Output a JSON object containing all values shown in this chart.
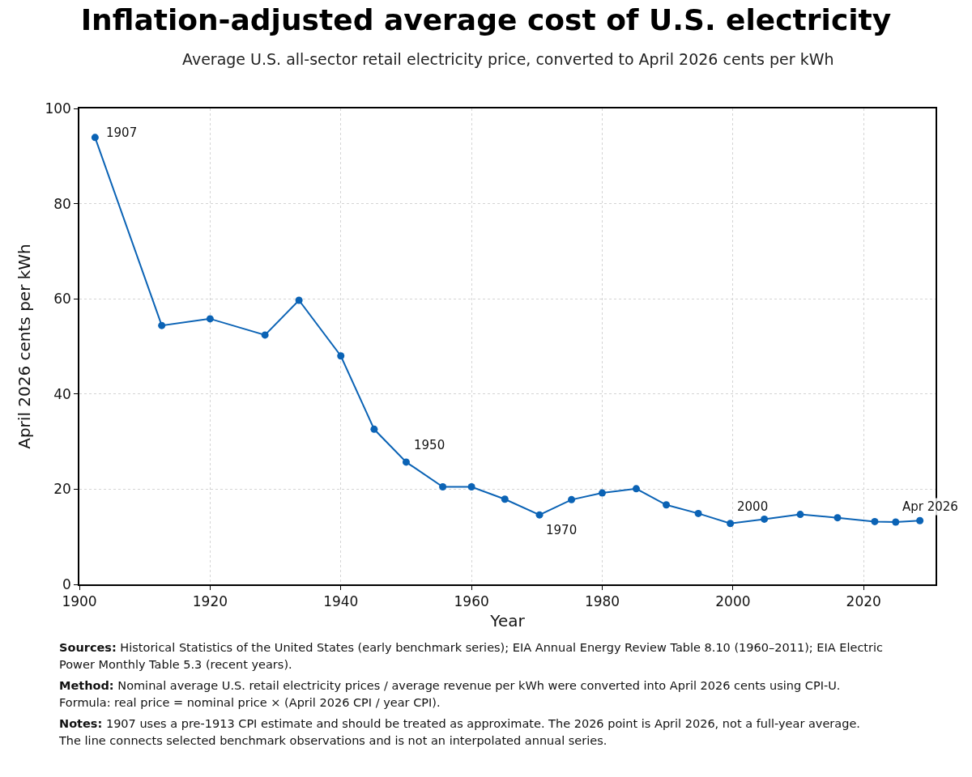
{
  "chart_data": {
    "type": "line",
    "title": "Inflation-adjusted average cost of U.S. electricity",
    "subtitle": "Average U.S. all-sector retail electricity price, converted to April 2026 cents per kWh",
    "xlabel": "Year",
    "ylabel": "April 2026 cents per kWh",
    "x": [
      1902.4,
      1912.6,
      1920,
      1928.4,
      1933.6,
      1940,
      1945.1,
      1950,
      1955.6,
      1960,
      1965.1,
      1970.4,
      1975.3,
      1980,
      1985.2,
      1989.8,
      1994.7,
      1999.6,
      2004.8,
      2010.3,
      2016,
      2021.7,
      2024.9,
      2028.6
    ],
    "series": [
      {
        "color": "#0b63b5",
        "values": [
          93.9,
          54.4,
          55.8,
          52.4,
          59.7,
          48,
          32.6,
          25.7,
          20.5,
          20.5,
          17.9,
          14.6,
          17.8,
          19.2,
          20.1,
          16.7,
          14.9,
          12.8,
          13.7,
          14.7,
          14,
          13.2,
          13.1,
          13.4
        ]
      }
    ],
    "xlim": [
      1900,
      2031
    ],
    "xticks": [
      1900,
      1920,
      1940,
      1960,
      1980,
      2000,
      2020
    ],
    "ylim": [
      0,
      100
    ],
    "yticks": [
      0,
      20,
      40,
      60,
      80,
      100
    ],
    "grid": true,
    "marker": "circle",
    "line_style": "solid",
    "annotations": [
      {
        "text": "1907",
        "x": 1902.4,
        "y": 93.9
      },
      {
        "text": "1950",
        "x": 1950,
        "y": 25.7
      },
      {
        "text": "1970",
        "x": 1970.4,
        "y": 14.6
      },
      {
        "text": "2000",
        "x": 1999.6,
        "y": 12.8
      },
      {
        "text": "Apr 2026",
        "x": 2028.6,
        "y": 13.4
      },
      "Sources: Historical Statistics of the United States (early benchmark series); EIA Annual Energy Review Table 8.10 (1960–2011); EIA Electric Power Monthly Table 5.3 (recent years).",
      "Method: Nominal average U.S. retail electricity prices / average revenue per kWh were converted into April 2026 cents using CPI-U. Formula: real price = nominal price × (April 2026 CPI / year CPI).",
      "Notes: 1907 uses a pre-1913 CPI estimate and should be treated as approximate. The 2026 point is April 2026, not a full-year average. The line connects selected benchmark observations and is not an interpolated annual series."
    ]
  }
}
